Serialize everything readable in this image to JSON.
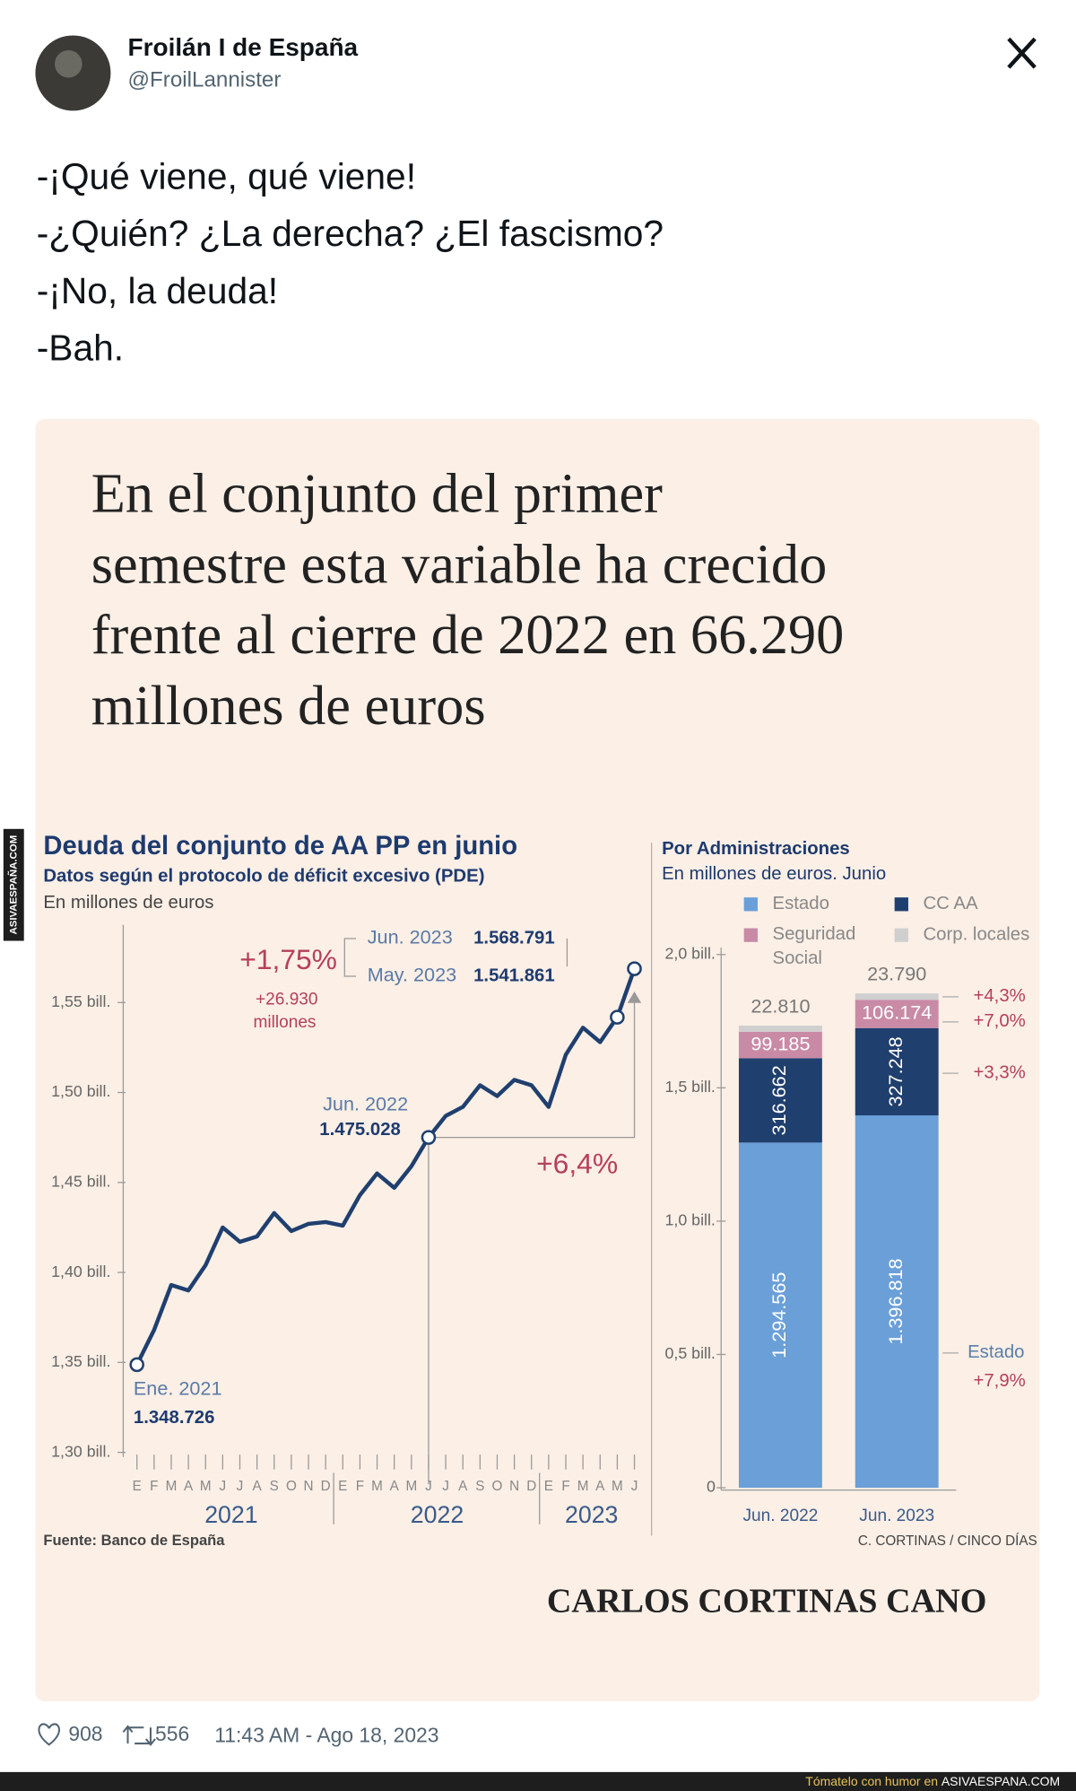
{
  "tweet": {
    "name": "Froilán I de España",
    "handle": "@FroilLannister",
    "text": [
      "-¡Qué viene, qué viene!",
      "-¿Quién? ¿La derecha? ¿El fascismo?",
      "-¡No, la deuda!",
      "-Bah."
    ]
  },
  "image": {
    "headline": [
      "En el conjunto del primer",
      "semestre esta variable ha crecido",
      "frente al cierre de 2022 en 66.290",
      "millones de euros"
    ],
    "byline": "CARLOS CORTINAS CANO"
  },
  "chart_data": [
    {
      "type": "line",
      "title": "Deuda del conjunto de AA PP en junio",
      "subtitle": "Datos según el protocolo de déficit excesivo (PDE)",
      "units": "En millones de euros",
      "source": "Fuente: Banco de España",
      "color": "#1f3f6e",
      "categories": [
        "E",
        "F",
        "M",
        "A",
        "M",
        "J",
        "J",
        "A",
        "S",
        "O",
        "N",
        "D",
        "E",
        "F",
        "M",
        "A",
        "M",
        "J",
        "J",
        "A",
        "S",
        "O",
        "N",
        "D",
        "E",
        "F",
        "M",
        "A",
        "M",
        "J"
      ],
      "year_labels": [
        "2021",
        "2022",
        "2023"
      ],
      "values": [
        1348726,
        1368000,
        1393000,
        1390000,
        1404000,
        1425000,
        1417000,
        1420000,
        1433000,
        1423000,
        1427000,
        1428000,
        1426000,
        1443000,
        1455000,
        1447000,
        1459000,
        1475028,
        1487000,
        1492000,
        1504000,
        1498000,
        1507000,
        1504000,
        1492000,
        1521000,
        1536000,
        1528000,
        1541861,
        1568791
      ],
      "value_labels": [
        "1.348.726",
        null,
        null,
        null,
        null,
        null,
        null,
        null,
        null,
        null,
        null,
        null,
        null,
        null,
        null,
        null,
        null,
        "1.475.028",
        null,
        null,
        null,
        null,
        null,
        null,
        null,
        null,
        null,
        null,
        "1.541.861",
        "1.568.791"
      ],
      "ylim": [
        1300000,
        1590000
      ],
      "yticks": [
        {
          "value": 1300000,
          "label": "1,30 bill."
        },
        {
          "value": 1350000,
          "label": "1,35 bill."
        },
        {
          "value": 1400000,
          "label": "1,40 bill."
        },
        {
          "value": 1450000,
          "label": "1,45 bill."
        },
        {
          "value": 1500000,
          "label": "1,50 bill."
        },
        {
          "value": 1550000,
          "label": "1,55 bill."
        }
      ],
      "annotations": {
        "ene2021": "Ene. 2021",
        "jun2022": "Jun. 2022",
        "may2023": "May. 2023",
        "jun2023": "Jun. 2023",
        "month_pct": "+1,75%",
        "month_abs": "+26.930",
        "month_unit": "millones",
        "year_pct": "+6,4%"
      }
    },
    {
      "type": "stacked_bar",
      "title": "Por Administraciones",
      "subtitle": "En millones de euros. Junio",
      "credit": "C. CORTINAS / CINCO DÍAS",
      "categories": [
        "Jun. 2022",
        "Jun. 2023"
      ],
      "series": [
        {
          "name": "Estado",
          "color": "#6a9fd8",
          "values": [
            1294565,
            1396818
          ],
          "value_labels": [
            "1.294.565",
            "1.396.818"
          ]
        },
        {
          "name": "CC AA",
          "color": "#1f3f6e",
          "values": [
            316662,
            327248
          ],
          "value_labels": [
            "316.662",
            "327.248"
          ]
        },
        {
          "name": "Seguridad Social",
          "color": "#c98aa6",
          "values": [
            99185,
            106174
          ],
          "value_labels": [
            "99.185",
            "106.174"
          ]
        },
        {
          "name": "Corp. locales",
          "color": "#cfcfcf",
          "values": [
            22810,
            23790
          ],
          "value_labels": [
            "22.810",
            "23.790"
          ]
        }
      ],
      "ylim": [
        0,
        2000000
      ],
      "yticks": [
        0,
        {
          "value": 500000,
          "label": "0,5 bill."
        },
        {
          "value": 1000000,
          "label": "1,0 bill."
        },
        {
          "value": 1500000,
          "label": "1,5 bill."
        },
        {
          "value": 2000000,
          "label": "2,0 bill."
        }
      ],
      "annotations": {
        "corp_change": "+4,3%",
        "ss_change": "+7,0%",
        "ccaa_change": "+3,3%",
        "estado_label": "Estado",
        "estado_change": "+7,9%"
      }
    }
  ],
  "footer": {
    "likes": 908,
    "retweets": 556,
    "timestamp": "11:43 AM - Ago 18, 2023"
  },
  "watermark": {
    "side": "ASIVAESPAÑA.COM",
    "tagline": "Tómatelo con humor en",
    "site": "ASIVAESPANA.COM"
  }
}
